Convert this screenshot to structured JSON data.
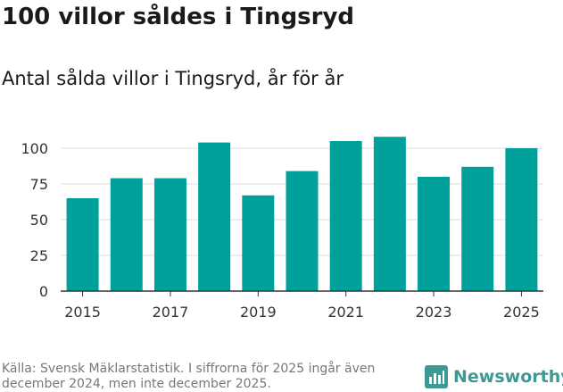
{
  "title": "100 villor såldes i Tingsryd",
  "subtitle": "Antal sålda villor i Tingsryd, år för år",
  "source": "Källa: Svensk Mäklarstatistik. I siffrorna för 2025 ingår även december 2024, men inte december 2025.",
  "brand": {
    "name": "Newsworthy",
    "icon": "bar-chart-icon"
  },
  "colors": {
    "bar": "#00a19a",
    "grid": "#dddddd",
    "axis": "#333333",
    "brand": "#3d9994",
    "source": "#777777"
  },
  "chart_data": {
    "type": "bar",
    "title": "Antal sålda villor i Tingsryd, år för år",
    "xlabel": "",
    "ylabel": "",
    "categories": [
      "2015",
      "2016",
      "2017",
      "2018",
      "2019",
      "2020",
      "2021",
      "2022",
      "2023",
      "2024",
      "2025"
    ],
    "values": [
      65,
      79,
      79,
      104,
      67,
      84,
      105,
      108,
      80,
      87,
      100
    ],
    "ylim": [
      0,
      110
    ],
    "yticks": [
      0,
      25,
      50,
      75,
      100
    ],
    "yticklabels": [
      "0",
      "25",
      "50",
      "75",
      "100"
    ],
    "xticklabels": [
      "2015",
      "2017",
      "2019",
      "2021",
      "2023",
      "2025"
    ],
    "grid": true,
    "legend": "none"
  }
}
